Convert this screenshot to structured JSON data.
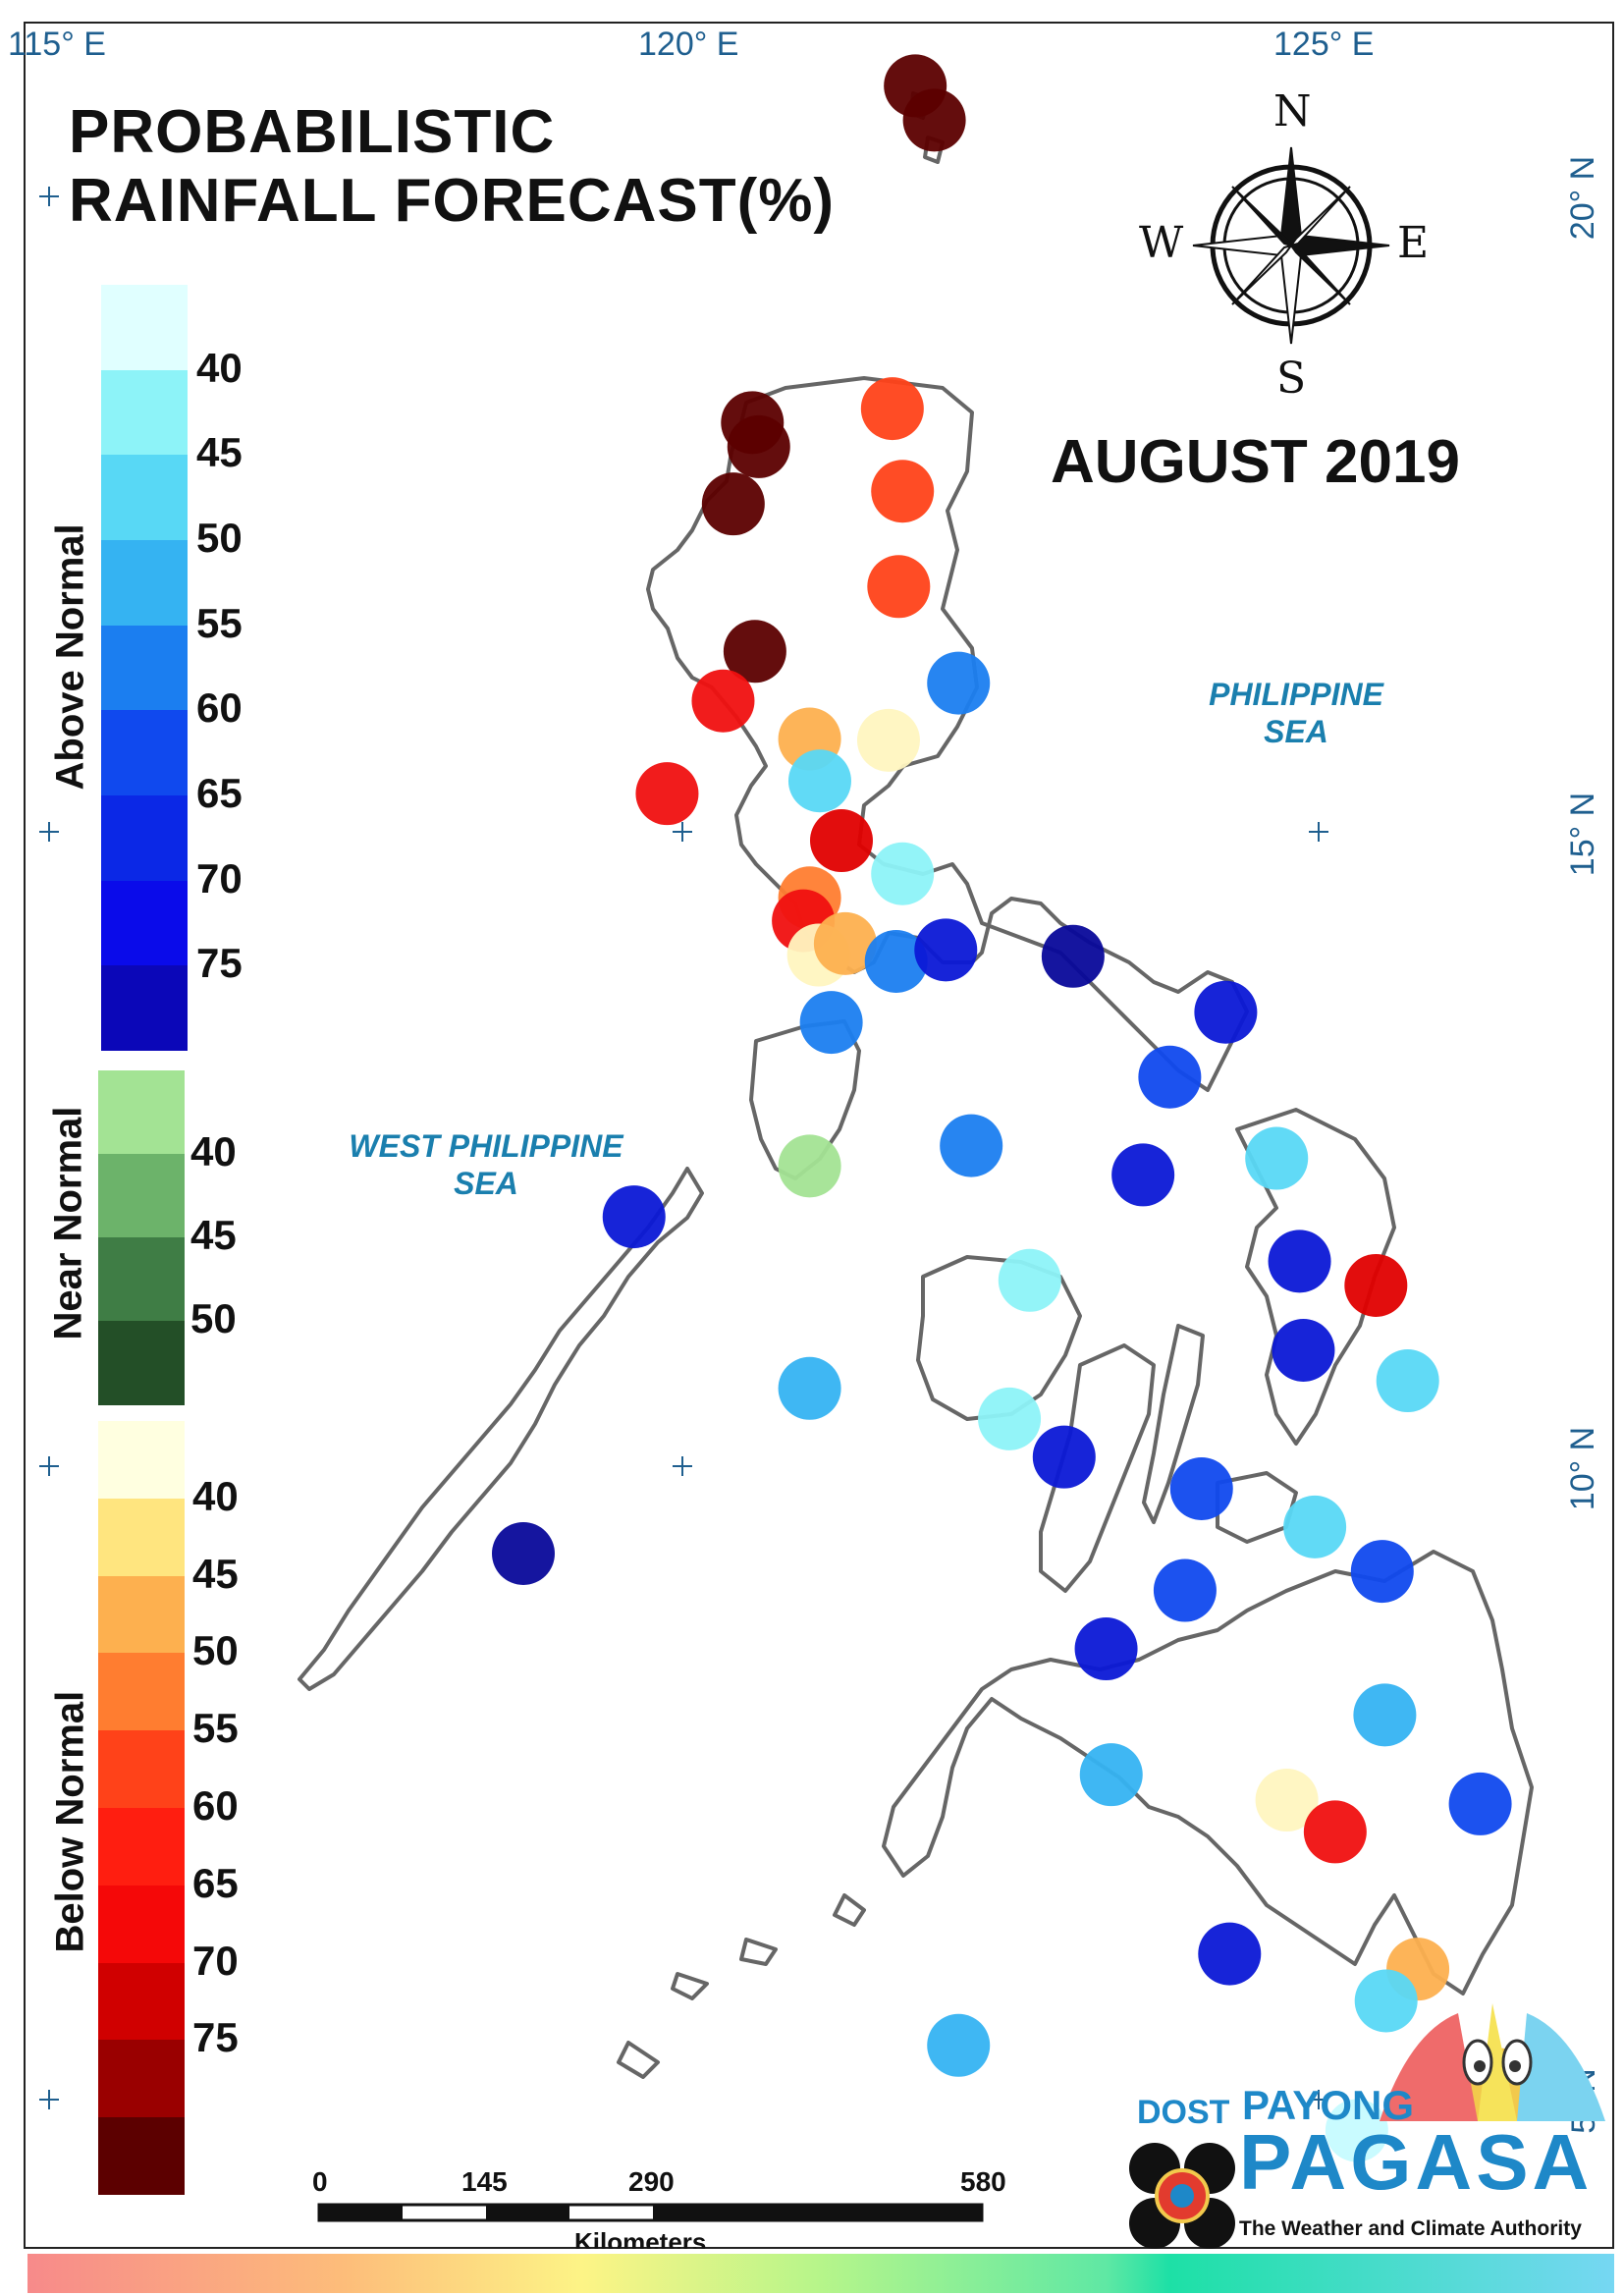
{
  "title": {
    "line1": "PROBABILISTIC",
    "line2": "RAINFALL FORECAST(%)"
  },
  "period": "AUGUST 2019",
  "compass": {
    "north": "N",
    "south": "S",
    "east": "E",
    "west": "W"
  },
  "graticule": {
    "lon_labels": [
      "115° E",
      "120° E",
      "125° E"
    ],
    "lat_labels": [
      "20° N",
      "15° N",
      "10° N",
      "5° N"
    ]
  },
  "seas": {
    "philippine_sea": [
      "PHILIPPINE",
      "SEA"
    ],
    "west_philippine_sea": [
      "WEST PHILIPPINE",
      "SEA"
    ]
  },
  "legend": {
    "above_normal": {
      "label": "Above Normal",
      "ticks": [
        "40",
        "45",
        "50",
        "55",
        "60",
        "65",
        "70",
        "75"
      ],
      "colors": [
        "#e0ffff",
        "#8df3f8",
        "#58d8f5",
        "#35b3f2",
        "#1b7ef0",
        "#1049ee",
        "#0b28e6",
        "#0a0bea",
        "#0b07b8"
      ]
    },
    "near_normal": {
      "label": "Near Normal",
      "ticks": [
        "40",
        "45",
        "50"
      ],
      "colors": [
        "#a3e394",
        "#6cb36a",
        "#3f7d45",
        "#234f27"
      ]
    },
    "below_normal": {
      "label": "Below Normal",
      "ticks": [
        "40",
        "45",
        "50",
        "55",
        "60",
        "65",
        "70",
        "75"
      ],
      "colors": [
        "#ffffe0",
        "#ffe57f",
        "#fdb04f",
        "#ff7d30",
        "#ff4219",
        "#ff1e10",
        "#f50808",
        "#d00000",
        "#9a0000",
        "#5c0000"
      ]
    }
  },
  "scale_bar": {
    "labels": [
      "0",
      "145",
      "290",
      "580"
    ],
    "unit": "Kilometers"
  },
  "logo": {
    "dost": "DOST",
    "payong": "PAYONG",
    "pagasa": "PAGASA",
    "tagline": "The Weather and Climate Authority"
  },
  "stations": [
    {
      "lon": 121.83,
      "lat": 20.87,
      "category": "below",
      "level": 75
    },
    {
      "lon": 121.98,
      "lat": 20.6,
      "category": "below",
      "level": 75
    },
    {
      "lon": 121.65,
      "lat": 18.33,
      "category": "below",
      "level": 60
    },
    {
      "lon": 120.55,
      "lat": 18.22,
      "category": "below",
      "level": 75
    },
    {
      "lon": 120.6,
      "lat": 18.03,
      "category": "below",
      "level": 75
    },
    {
      "lon": 121.73,
      "lat": 17.68,
      "category": "below",
      "level": 60
    },
    {
      "lon": 120.4,
      "lat": 17.58,
      "category": "below",
      "level": 75
    },
    {
      "lon": 121.7,
      "lat": 16.93,
      "category": "below",
      "level": 60
    },
    {
      "lon": 120.57,
      "lat": 16.42,
      "category": "below",
      "level": 75
    },
    {
      "lon": 120.32,
      "lat": 16.03,
      "category": "below",
      "level": 65
    },
    {
      "lon": 122.17,
      "lat": 16.17,
      "category": "above",
      "level": 60
    },
    {
      "lon": 121.0,
      "lat": 15.73,
      "category": "below",
      "level": 50
    },
    {
      "lon": 121.62,
      "lat": 15.72,
      "category": "below",
      "level": 40
    },
    {
      "lon": 121.08,
      "lat": 15.4,
      "category": "above",
      "level": 50
    },
    {
      "lon": 119.88,
      "lat": 15.3,
      "category": "below",
      "level": 65
    },
    {
      "lon": 121.25,
      "lat": 14.93,
      "category": "below",
      "level": 70
    },
    {
      "lon": 121.73,
      "lat": 14.67,
      "category": "above",
      "level": 45
    },
    {
      "lon": 121.0,
      "lat": 14.48,
      "category": "below",
      "level": 55
    },
    {
      "lon": 120.95,
      "lat": 14.3,
      "category": "below",
      "level": 65
    },
    {
      "lon": 121.07,
      "lat": 14.03,
      "category": "below",
      "level": 40
    },
    {
      "lon": 121.28,
      "lat": 14.12,
      "category": "below",
      "level": 50
    },
    {
      "lon": 121.68,
      "lat": 13.98,
      "category": "above",
      "level": 60
    },
    {
      "lon": 122.07,
      "lat": 14.07,
      "category": "above",
      "level": 70
    },
    {
      "lon": 123.07,
      "lat": 14.02,
      "category": "above",
      "level": 75
    },
    {
      "lon": 121.17,
      "lat": 13.5,
      "category": "above",
      "level": 60
    },
    {
      "lon": 124.27,
      "lat": 13.58,
      "category": "above",
      "level": 70
    },
    {
      "lon": 123.83,
      "lat": 13.07,
      "category": "above",
      "level": 65
    },
    {
      "lon": 121.0,
      "lat": 12.37,
      "category": "near",
      "level": 40
    },
    {
      "lon": 122.27,
      "lat": 12.53,
      "category": "above",
      "level": 60
    },
    {
      "lon": 123.62,
      "lat": 12.3,
      "category": "above",
      "level": 70
    },
    {
      "lon": 124.67,
      "lat": 12.43,
      "category": "above",
      "level": 50
    },
    {
      "lon": 119.62,
      "lat": 11.97,
      "category": "above",
      "level": 70
    },
    {
      "lon": 124.85,
      "lat": 11.62,
      "category": "above",
      "level": 70
    },
    {
      "lon": 125.45,
      "lat": 11.43,
      "category": "below",
      "level": 70
    },
    {
      "lon": 122.73,
      "lat": 11.47,
      "category": "above",
      "level": 45
    },
    {
      "lon": 124.88,
      "lat": 10.92,
      "category": "above",
      "level": 70
    },
    {
      "lon": 125.7,
      "lat": 10.68,
      "category": "above",
      "level": 50
    },
    {
      "lon": 121.0,
      "lat": 10.62,
      "category": "above",
      "level": 55
    },
    {
      "lon": 122.57,
      "lat": 10.38,
      "category": "above",
      "level": 45
    },
    {
      "lon": 123.0,
      "lat": 10.08,
      "category": "above",
      "level": 70
    },
    {
      "lon": 124.08,
      "lat": 9.83,
      "category": "above",
      "level": 65
    },
    {
      "lon": 124.97,
      "lat": 9.53,
      "category": "above",
      "level": 50
    },
    {
      "lon": 118.75,
      "lat": 9.32,
      "category": "above",
      "level": 75
    },
    {
      "lon": 125.5,
      "lat": 9.18,
      "category": "above",
      "level": 65
    },
    {
      "lon": 123.95,
      "lat": 9.03,
      "category": "above",
      "level": 65
    },
    {
      "lon": 123.33,
      "lat": 8.57,
      "category": "above",
      "level": 70
    },
    {
      "lon": 125.52,
      "lat": 8.05,
      "category": "above",
      "level": 55
    },
    {
      "lon": 123.37,
      "lat": 7.58,
      "category": "above",
      "level": 55
    },
    {
      "lon": 124.75,
      "lat": 7.38,
      "category": "below",
      "level": 40
    },
    {
      "lon": 126.27,
      "lat": 7.35,
      "category": "above",
      "level": 65
    },
    {
      "lon": 125.13,
      "lat": 7.13,
      "category": "below",
      "level": 65
    },
    {
      "lon": 124.3,
      "lat": 6.17,
      "category": "above",
      "level": 70
    },
    {
      "lon": 125.78,
      "lat": 6.05,
      "category": "below",
      "level": 50
    },
    {
      "lon": 125.53,
      "lat": 5.8,
      "category": "above",
      "level": 50
    },
    {
      "lon": 122.17,
      "lat": 5.45,
      "category": "above",
      "level": 55
    },
    {
      "lon": 125.3,
      "lat": 4.78,
      "category": "above",
      "level": 40
    }
  ]
}
